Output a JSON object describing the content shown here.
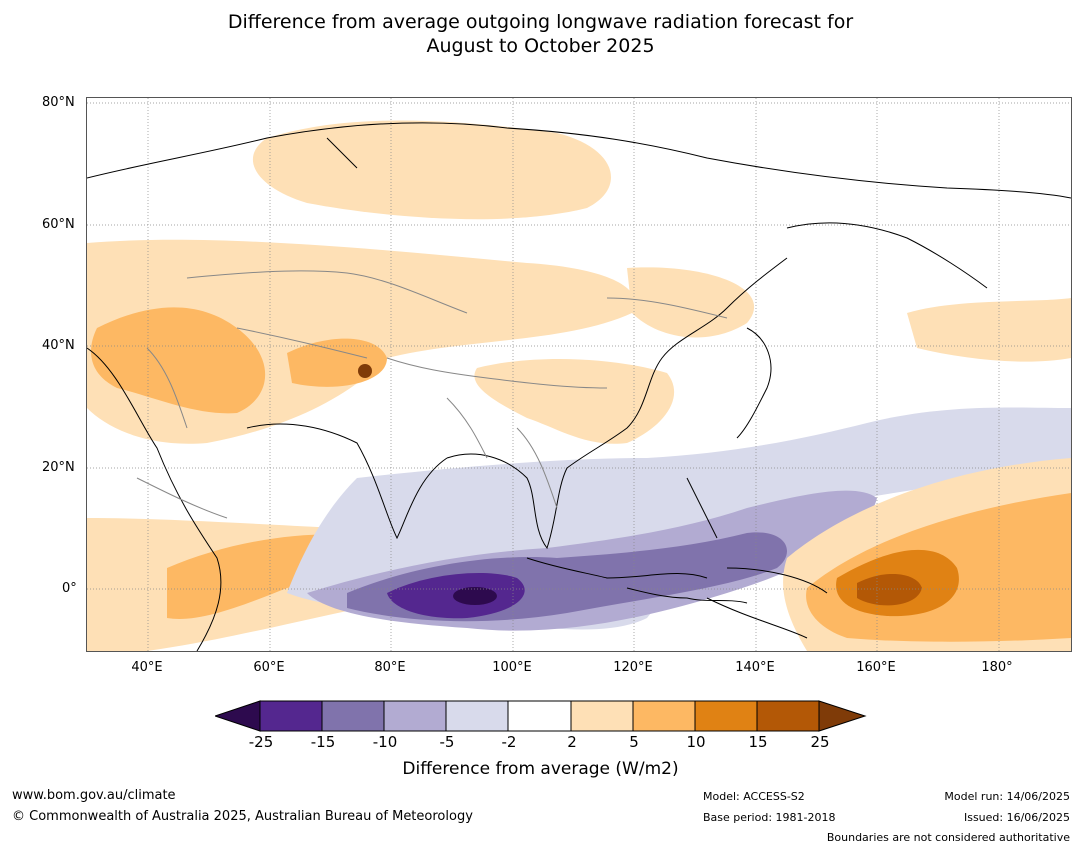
{
  "title_line1": "Difference from average outgoing longwave radiation forecast for",
  "title_line2": "August to October 2025",
  "lat_labels": [
    "80°N",
    "60°N",
    "40°N",
    "20°N",
    "0°"
  ],
  "lon_labels": [
    "40°E",
    "60°E",
    "80°E",
    "100°E",
    "120°E",
    "140°E",
    "160°E",
    "180°"
  ],
  "colorbar": {
    "title": "Difference from average (W/m2)",
    "ticks": [
      "-25",
      "-15",
      "-10",
      "-5",
      "-2",
      "2",
      "5",
      "10",
      "15",
      "25"
    ],
    "colors": {
      "below_-25": "#2d0a4e",
      "-25_-15": "#54278f",
      "-15_-10": "#8073ac",
      "-10_-5": "#b2abd2",
      "-5_-2": "#d8daeb",
      "-2_2": "#ffffff",
      "2_5": "#fee0b6",
      "5_10": "#fdb863",
      "10_15": "#e08214",
      "15_25": "#b35806",
      "above_25": "#7f3b08"
    }
  },
  "footer": {
    "website": "www.bom.gov.au/climate",
    "copyright": "© Commonwealth of Australia 2025, Australian Bureau of Meteorology",
    "model": "Model: ACCESS-S2",
    "base_period": "Base period: 1981-2018",
    "model_run": "Model run: 14/06/2025",
    "issued": "Issued: 16/06/2025",
    "disclaimer": "Boundaries are not considered authoritative"
  }
}
